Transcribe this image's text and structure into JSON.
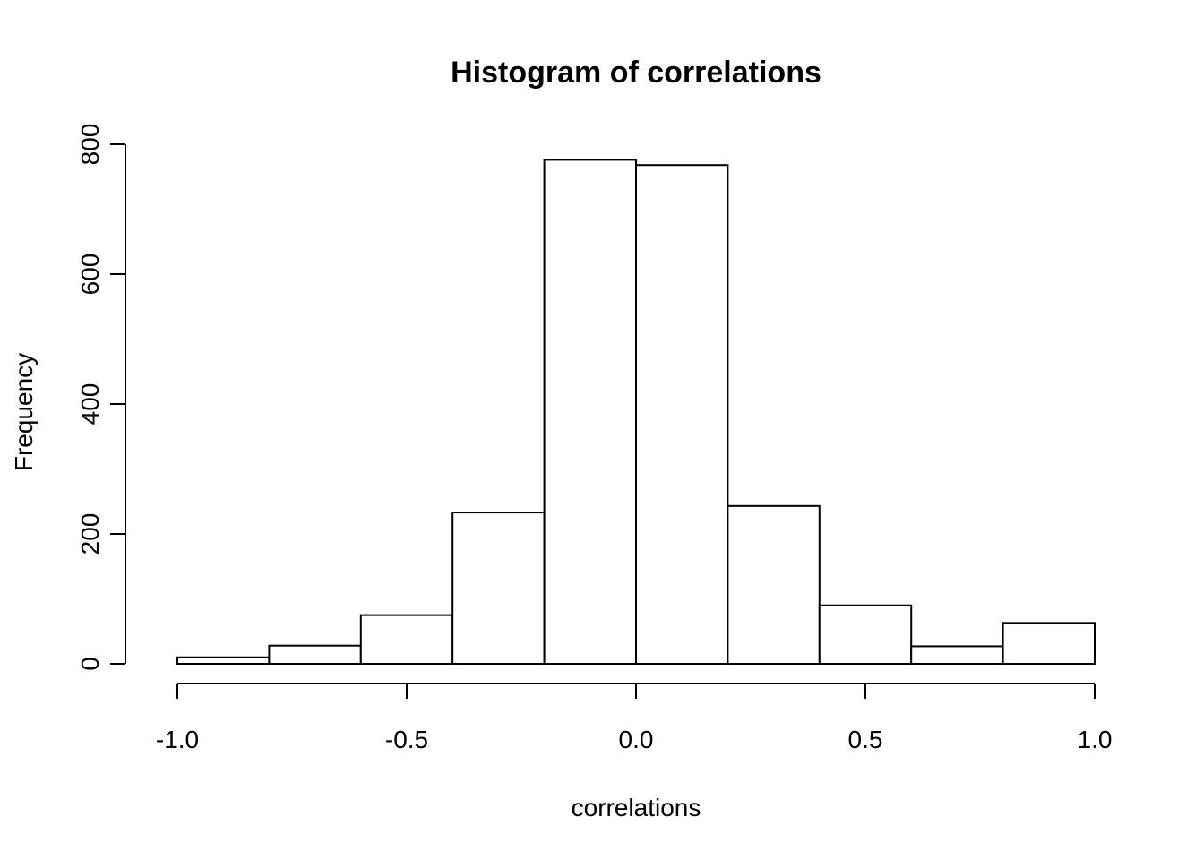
{
  "chart_data": {
    "type": "bar",
    "title": "Histogram of correlations",
    "xlabel": "correlations",
    "ylabel": "Frequency",
    "bins": [
      {
        "from": -1.0,
        "to": -0.8,
        "count": 10
      },
      {
        "from": -0.8,
        "to": -0.6,
        "count": 28
      },
      {
        "from": -0.6,
        "to": -0.4,
        "count": 75
      },
      {
        "from": -0.4,
        "to": -0.2,
        "count": 233
      },
      {
        "from": -0.2,
        "to": 0.0,
        "count": 776
      },
      {
        "from": 0.0,
        "to": 0.2,
        "count": 768
      },
      {
        "from": 0.2,
        "to": 0.4,
        "count": 243
      },
      {
        "from": 0.4,
        "to": 0.6,
        "count": 90
      },
      {
        "from": 0.6,
        "to": 0.8,
        "count": 27
      },
      {
        "from": 0.8,
        "to": 1.0,
        "count": 63
      }
    ],
    "xlim": [
      -1.0,
      1.0
    ],
    "ylim": [
      0,
      800
    ],
    "x_ticks": [
      "-1.0",
      "-0.5",
      "0.0",
      "0.5",
      "1.0"
    ],
    "y_ticks": [
      "0",
      "200",
      "400",
      "600",
      "800"
    ],
    "grid": false,
    "colors": {
      "bar_fill": "#ffffff",
      "bar_stroke": "#000000"
    }
  }
}
